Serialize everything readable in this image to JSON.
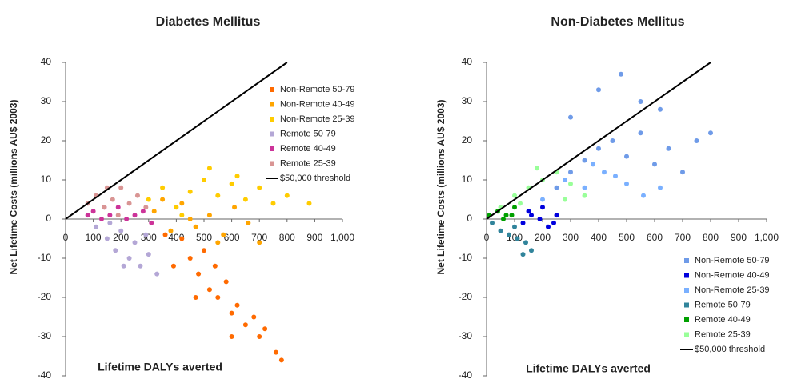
{
  "chart_data": [
    {
      "type": "scatter",
      "title": "Diabetes Mellitus",
      "xlabel": "Lifetime DALYs averted",
      "ylabel": "Net Lifetime Costs (millions AU$ 2003)",
      "xlim": [
        0,
        1000
      ],
      "ylim": [
        -40,
        40
      ],
      "xticks": [
        0,
        100,
        200,
        300,
        400,
        500,
        600,
        700,
        800,
        900,
        {
          "value": 1000,
          "label": "1,000"
        }
      ],
      "yticks": [
        -40,
        -30,
        -20,
        -10,
        0,
        10,
        20,
        30,
        40
      ],
      "series": [
        {
          "name": "Non-Remote 50-79",
          "color": "#ff6a00",
          "x": [
            420,
            450,
            480,
            500,
            520,
            550,
            580,
            600,
            620,
            650,
            680,
            700,
            720,
            760,
            470,
            540,
            600,
            780,
            360,
            390
          ],
          "values": [
            -5,
            -10,
            -14,
            -8,
            -18,
            -20,
            -16,
            -24,
            -22,
            -27,
            -25,
            -30,
            -28,
            -34,
            -20,
            -12,
            -30,
            -36,
            -4,
            -12
          ]
        },
        {
          "name": "Non-Remote 40-49",
          "color": "#ffa500",
          "x": [
            320,
            380,
            420,
            470,
            520,
            570,
            610,
            660,
            700,
            350,
            450,
            550
          ],
          "values": [
            2,
            -3,
            4,
            -2,
            1,
            -4,
            3,
            -1,
            -6,
            5,
            0,
            -6
          ]
        },
        {
          "name": "Non-Remote 25-39",
          "color": "#ffcc00",
          "x": [
            300,
            350,
            400,
            450,
            500,
            550,
            600,
            650,
            700,
            750,
            800,
            880,
            520,
            420,
            620
          ],
          "values": [
            5,
            8,
            3,
            7,
            10,
            6,
            9,
            5,
            8,
            4,
            6,
            4,
            13,
            1,
            11
          ]
        },
        {
          "name": "Remote 50-79",
          "color": "#b4a7d6",
          "x": [
            110,
            150,
            180,
            200,
            230,
            250,
            270,
            300,
            330,
            160,
            290,
            210
          ],
          "values": [
            -2,
            -5,
            -8,
            -3,
            -10,
            -6,
            -12,
            -9,
            -14,
            -1,
            -4,
            -12
          ]
        },
        {
          "name": "Remote 40-49",
          "color": "#cc3399",
          "x": [
            80,
            100,
            130,
            160,
            190,
            220,
            250,
            280,
            310,
            140
          ],
          "values": [
            1,
            2,
            0,
            1,
            3,
            0,
            1,
            2,
            -1,
            3
          ]
        },
        {
          "name": "Remote 25-39",
          "color": "#d99594",
          "x": [
            80,
            110,
            140,
            170,
            200,
            230,
            260,
            290,
            190,
            150
          ],
          "values": [
            4,
            6,
            3,
            5,
            8,
            4,
            6,
            3,
            1,
            8
          ]
        },
        {
          "name": "$50,000 threshold",
          "color": "#000000",
          "mode": "line",
          "x": [
            0,
            800
          ],
          "values": [
            0,
            40
          ]
        }
      ]
    },
    {
      "type": "scatter",
      "title": "Non-Diabetes Mellitus",
      "xlabel": "Lifetime DALYs averted",
      "ylabel": "Net Lifetime Costs (millions AU$ 2003)",
      "xlim": [
        0,
        1000
      ],
      "ylim": [
        -40,
        40
      ],
      "xticks": [
        0,
        100,
        200,
        300,
        400,
        500,
        600,
        700,
        800,
        900,
        {
          "value": 1000,
          "label": "1,000"
        }
      ],
      "yticks": [
        -40,
        -30,
        -20,
        -10,
        0,
        10,
        20,
        30,
        40
      ],
      "series": [
        {
          "name": "Non-Remote 50-79",
          "color": "#6f9be8",
          "x": [
            250,
            300,
            350,
            400,
            450,
            500,
            550,
            600,
            650,
            700,
            750,
            800,
            480,
            400,
            550,
            300,
            620
          ],
          "values": [
            8,
            12,
            15,
            18,
            20,
            16,
            22,
            14,
            18,
            12,
            20,
            22,
            37,
            33,
            30,
            26,
            28
          ]
        },
        {
          "name": "Non-Remote 40-49",
          "color": "#0000dd",
          "x": [
            130,
            160,
            190,
            220,
            250,
            150,
            200,
            240
          ],
          "values": [
            -1,
            1,
            0,
            -2,
            1,
            2,
            3,
            -1
          ]
        },
        {
          "name": "Non-Remote 25-39",
          "color": "#7ab0ff",
          "x": [
            200,
            280,
            350,
            420,
            500,
            560,
            380,
            460,
            620
          ],
          "values": [
            5,
            10,
            8,
            12,
            9,
            6,
            14,
            11,
            8
          ]
        },
        {
          "name": "Remote 50-79",
          "color": "#31849b",
          "x": [
            20,
            50,
            80,
            110,
            140,
            160,
            100,
            130
          ],
          "values": [
            -1,
            -3,
            -4,
            -5,
            -6,
            -8,
            -2,
            -9
          ]
        },
        {
          "name": "Remote 40-49",
          "color": "#00a000",
          "x": [
            10,
            40,
            70,
            100,
            60,
            90
          ],
          "values": [
            1,
            2,
            1,
            3,
            0,
            1
          ]
        },
        {
          "name": "Remote 25-39",
          "color": "#99ff99",
          "x": [
            50,
            100,
            150,
            200,
            250,
            300,
            350,
            120,
            180,
            280
          ],
          "values": [
            3,
            6,
            8,
            10,
            12,
            9,
            6,
            4,
            13,
            5
          ]
        },
        {
          "name": "$50,000 threshold",
          "color": "#000000",
          "mode": "line",
          "x": [
            0,
            800
          ],
          "values": [
            0,
            40
          ]
        }
      ]
    }
  ]
}
